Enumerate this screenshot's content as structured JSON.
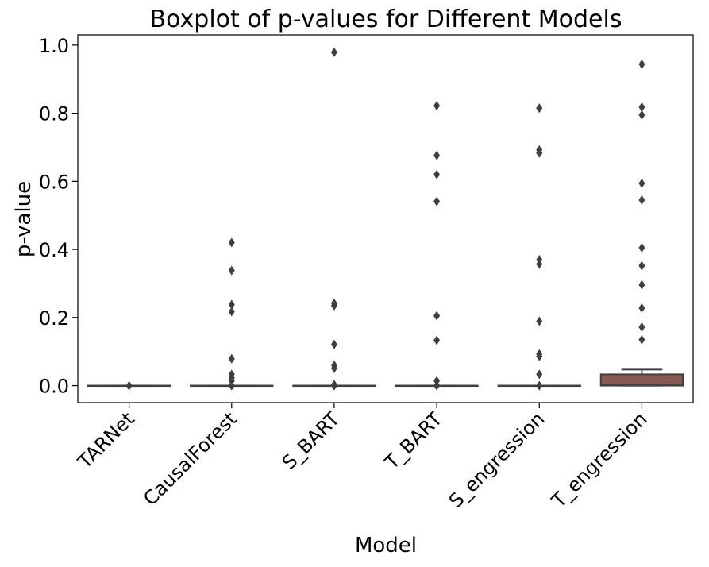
{
  "chart_data": {
    "type": "boxplot",
    "title": "Boxplot of p-values for Different Models",
    "xlabel": "Model",
    "ylabel": "p-value",
    "ylim": [
      -0.05,
      1.03
    ],
    "yticks": [
      0.0,
      0.2,
      0.4,
      0.6,
      0.8,
      1.0
    ],
    "ytick_labels": [
      "0.0",
      "0.2",
      "0.4",
      "0.6",
      "0.8",
      "1.0"
    ],
    "grid": false,
    "categories": [
      "TARNet",
      "CausalForest",
      "S_BART",
      "T_BART",
      "S_engression",
      "T_engression"
    ],
    "boxes": [
      {
        "q1": 0,
        "median": 0,
        "q3": 0,
        "whisker_low": 0,
        "whisker_high": 0,
        "color": "#3274a1",
        "outliers": [
          0.0
        ]
      },
      {
        "q1": 0,
        "median": 0,
        "q3": 0,
        "whisker_low": 0,
        "whisker_high": 0,
        "color": "#e1812c",
        "outliers": [
          0.42,
          0.338,
          0.238,
          0.217,
          0.079,
          0.033,
          0.023,
          0.014,
          0.0
        ]
      },
      {
        "q1": 0,
        "median": 0,
        "q3": 0,
        "whisker_low": 0,
        "whisker_high": 0,
        "color": "#3a923a",
        "outliers": [
          0.979,
          0.242,
          0.235,
          0.121,
          0.06,
          0.051,
          0.003,
          0.0
        ]
      },
      {
        "q1": 0,
        "median": 0,
        "q3": 0,
        "whisker_low": 0,
        "whisker_high": 0,
        "color": "#c03d3e",
        "outliers": [
          0.822,
          0.676,
          0.62,
          0.541,
          0.205,
          0.133,
          0.014,
          0.0
        ]
      },
      {
        "q1": 0,
        "median": 0,
        "q3": 0,
        "whisker_low": 0,
        "whisker_high": 0,
        "color": "#9372b2",
        "outliers": [
          0.815,
          0.692,
          0.683,
          0.37,
          0.357,
          0.189,
          0.093,
          0.086,
          0.033,
          0.0
        ]
      },
      {
        "q1": 0,
        "median": 0.001,
        "q3": 0.033,
        "whisker_low": 0,
        "whisker_high": 0.047,
        "color": "#845b53",
        "outliers": [
          0.944,
          0.818,
          0.795,
          0.594,
          0.545,
          0.405,
          0.352,
          0.296,
          0.228,
          0.172,
          0.135
        ]
      }
    ]
  }
}
